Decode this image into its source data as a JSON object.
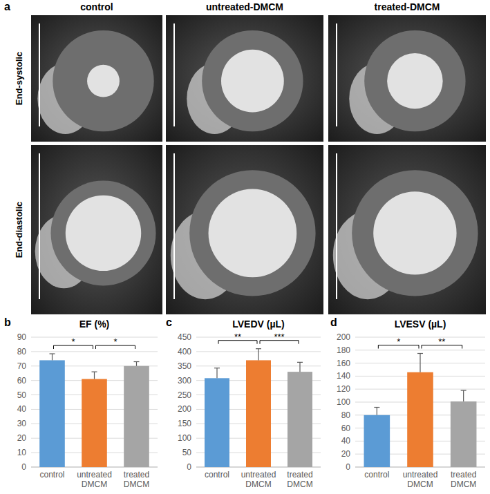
{
  "panel_a": {
    "label": "a",
    "columns": [
      "control",
      "untreated-DMCM",
      "treated-DMCM"
    ],
    "rows": [
      "End-systolic",
      "End-diastolic"
    ]
  },
  "chart_data": [
    {
      "type": "bar",
      "panel_label": "b",
      "title": "EF (%)",
      "categories": [
        "control",
        "untreated DMCM",
        "treated DMCM"
      ],
      "values": [
        74,
        61,
        70
      ],
      "errors": [
        4.5,
        5,
        3
      ],
      "colors": [
        "#5b9bd5",
        "#ed7d31",
        "#a5a5a5"
      ],
      "ylim": [
        0,
        90
      ],
      "yticks": [
        0,
        10,
        20,
        30,
        40,
        50,
        60,
        70,
        80,
        90
      ],
      "grid": true,
      "annotations": [
        {
          "from": 0,
          "to": 1,
          "text": "*"
        },
        {
          "from": 1,
          "to": 2,
          "text": "*"
        }
      ]
    },
    {
      "type": "bar",
      "panel_label": "c",
      "title": "LVEDV (µL)",
      "categories": [
        "control",
        "untreated DMCM",
        "treated DMCM"
      ],
      "values": [
        308,
        370,
        330
      ],
      "errors": [
        35,
        40,
        33
      ],
      "colors": [
        "#5b9bd5",
        "#ed7d31",
        "#a5a5a5"
      ],
      "ylim": [
        0,
        450
      ],
      "yticks": [
        0,
        50,
        100,
        150,
        200,
        250,
        300,
        350,
        400,
        450
      ],
      "grid": true,
      "annotations": [
        {
          "from": 0,
          "to": 1,
          "text": "**"
        },
        {
          "from": 1,
          "to": 2,
          "text": "***"
        }
      ]
    },
    {
      "type": "bar",
      "panel_label": "d",
      "title": "LVESV (µL)",
      "categories": [
        "control",
        "untreated DMCM",
        "treated DMCM"
      ],
      "values": [
        80,
        146,
        101
      ],
      "errors": [
        12,
        29,
        17
      ],
      "colors": [
        "#5b9bd5",
        "#ed7d31",
        "#a5a5a5"
      ],
      "ylim": [
        0,
        200
      ],
      "yticks": [
        0,
        20,
        40,
        60,
        80,
        100,
        120,
        140,
        160,
        180,
        200
      ],
      "grid": true,
      "annotations": [
        {
          "from": 0,
          "to": 1,
          "text": "*"
        },
        {
          "from": 1,
          "to": 2,
          "text": "**"
        }
      ]
    }
  ]
}
